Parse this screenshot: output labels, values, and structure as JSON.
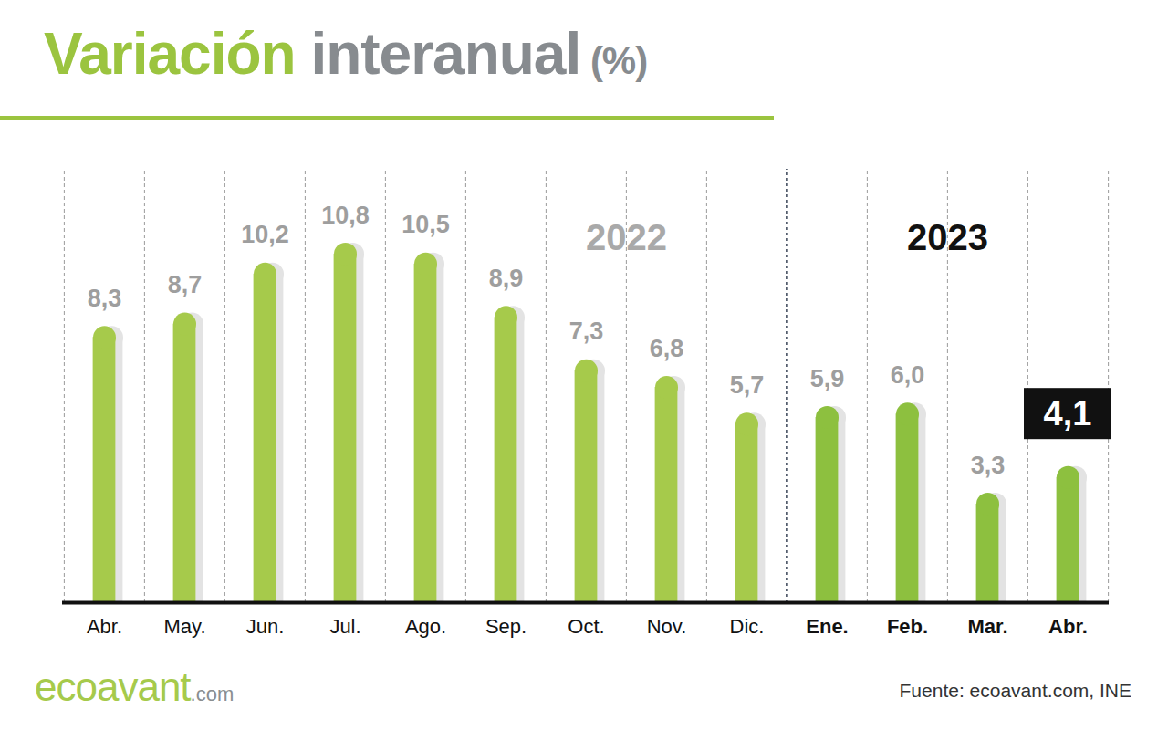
{
  "chart_data": {
    "type": "bar",
    "title": "Variación interanual (%)",
    "categories": [
      "Abr.",
      "May.",
      "Jun.",
      "Jul.",
      "Ago.",
      "Sep.",
      "Oct.",
      "Nov.",
      "Dic.",
      "Ene.",
      "Feb.",
      "Mar.",
      "Abr."
    ],
    "values": [
      8.3,
      8.7,
      10.2,
      10.8,
      10.5,
      8.9,
      7.3,
      6.8,
      5.7,
      5.9,
      6.0,
      3.3,
      4.1
    ],
    "value_labels": [
      "8,3",
      "8,7",
      "10,2",
      "10,8",
      "10,5",
      "8,9",
      "7,3",
      "6,8",
      "5,7",
      "5,9",
      "6,0",
      "3,3",
      "4,1"
    ],
    "groups": [
      {
        "label": "2022",
        "start": 0,
        "end": 8,
        "color": "#a6ca4b"
      },
      {
        "label": "2023",
        "start": 9,
        "end": 12,
        "color": "#8dc03f"
      }
    ],
    "ylim": [
      0,
      13
    ],
    "yticks": [],
    "tick_labels": "x",
    "data_labels": true,
    "grid": false,
    "source": "Fuente: ecoavant.com, INE",
    "logo": "ecoavant.com"
  }
}
